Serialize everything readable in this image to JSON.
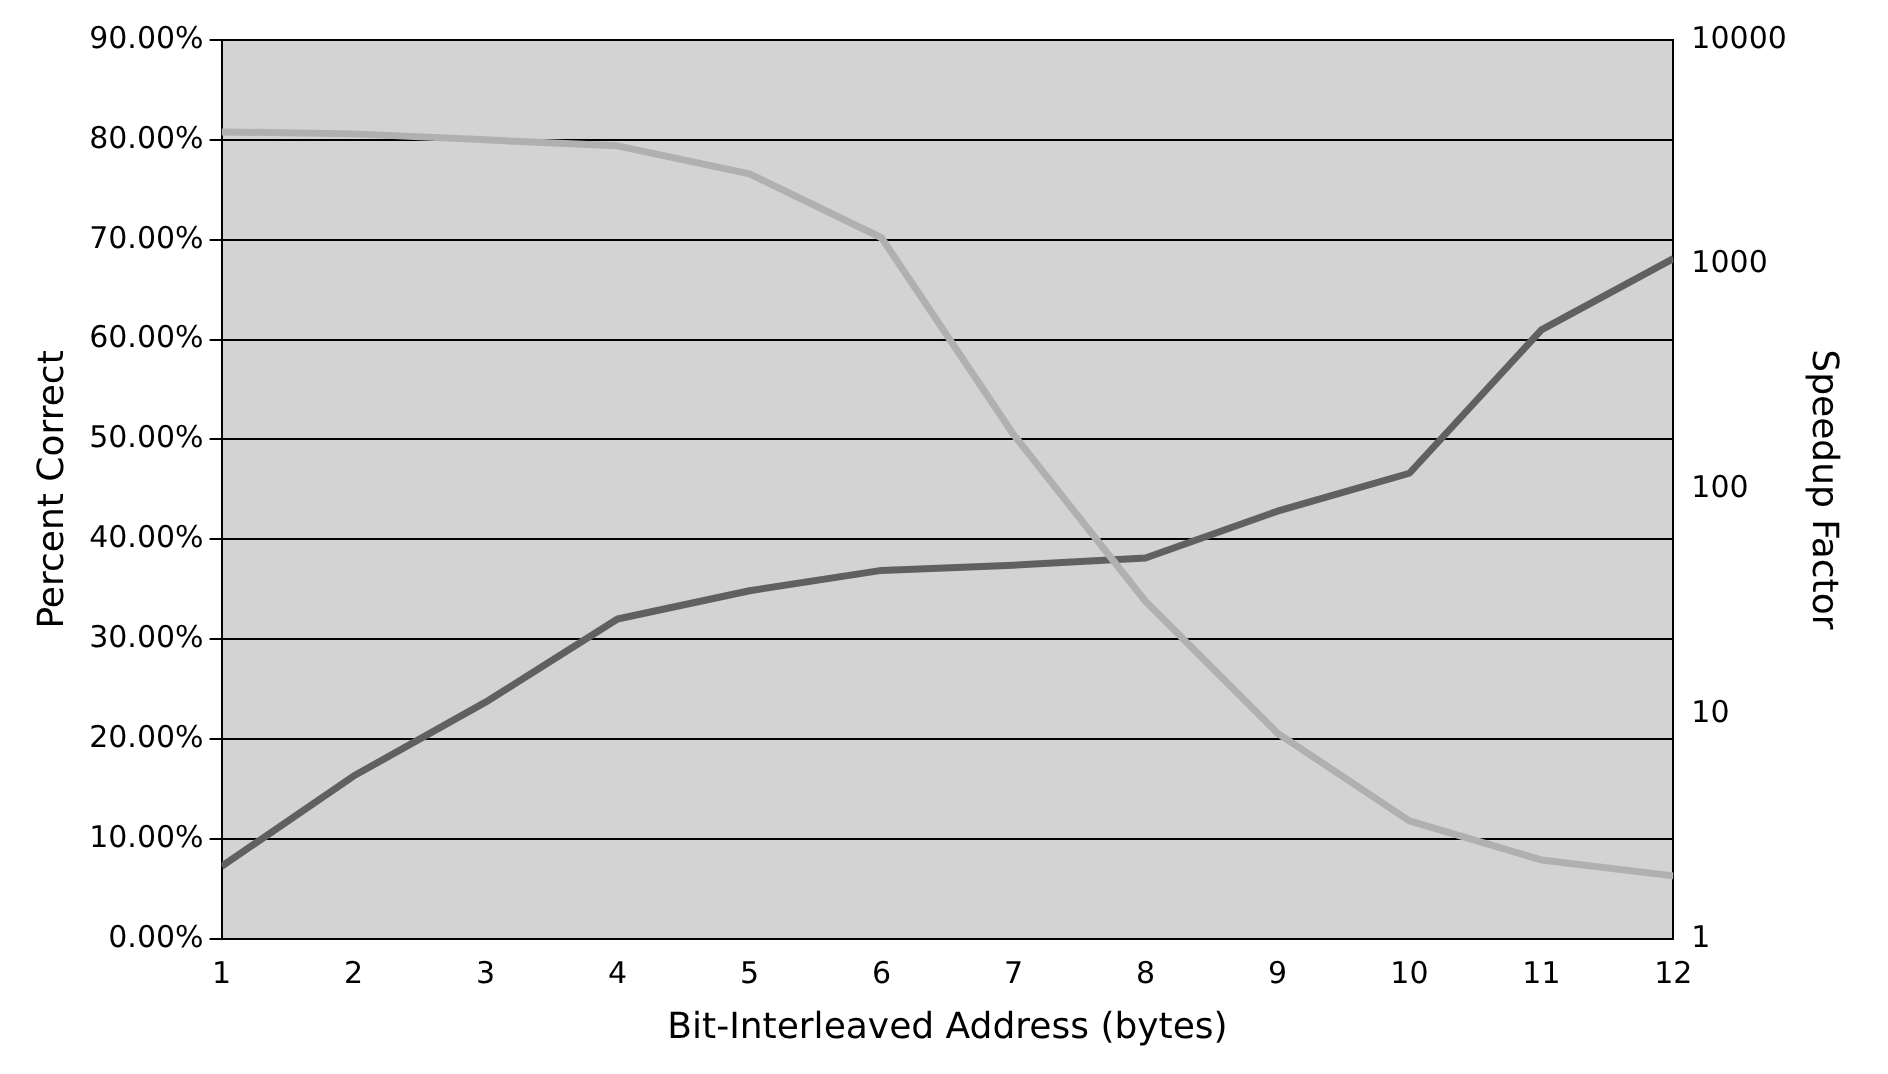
{
  "chart_data": {
    "type": "line",
    "xlabel": "Bit-Interleaved Address (bytes)",
    "ylabel": "Percent Correct",
    "y2label": "Speedup Factor",
    "x": [
      1,
      2,
      3,
      4,
      5,
      6,
      7,
      8,
      9,
      10,
      11,
      12
    ],
    "series": [
      {
        "color": "#b0b0b0",
        "values": [
          80.8,
          80.6,
          80.0,
          79.4,
          76.6,
          70.2,
          50.5,
          33.8,
          20.6,
          11.8,
          7.9,
          6.3
        ]
      },
      {
        "color": "#606060",
        "axis": "y2",
        "values": [
          2.1,
          5.3,
          11.3,
          26.5,
          35.4,
          43.6,
          46,
          49.5,
          80,
          118,
          513,
          1065
        ]
      }
    ],
    "xlim": [
      1,
      12
    ],
    "xticks": [
      1,
      2,
      3,
      4,
      5,
      6,
      7,
      8,
      9,
      10,
      11,
      12
    ],
    "ylim": [
      0,
      90
    ],
    "yticks": [
      {
        "value": 0,
        "label": "0.00%"
      },
      {
        "value": 10,
        "label": "10.00%"
      },
      {
        "value": 20,
        "label": "20.00%"
      },
      {
        "value": 30,
        "label": "30.00%"
      },
      {
        "value": 40,
        "label": "40.00%"
      },
      {
        "value": 50,
        "label": "50.00%"
      },
      {
        "value": 60,
        "label": "60.00%"
      },
      {
        "value": 70,
        "label": "70.00%"
      },
      {
        "value": 80,
        "label": "80.00%"
      },
      {
        "value": 90,
        "label": "90.00%"
      }
    ],
    "y2lim": [
      1,
      10000
    ],
    "y2ticks": [
      1,
      10,
      100,
      1000,
      10000
    ],
    "log": "y2",
    "grid": "y",
    "legend": false,
    "marker": "none",
    "line_style": "solid"
  }
}
